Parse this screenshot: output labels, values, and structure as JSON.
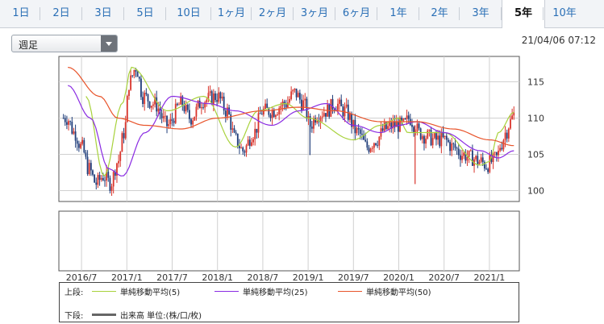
{
  "tabs": [
    {
      "label": "1日"
    },
    {
      "label": "2日"
    },
    {
      "label": "3日"
    },
    {
      "label": "5日"
    },
    {
      "label": "10日"
    },
    {
      "label": "1ヶ月"
    },
    {
      "label": "2ヶ月"
    },
    {
      "label": "3ヶ月"
    },
    {
      "label": "6ヶ月"
    },
    {
      "label": "1年"
    },
    {
      "label": "2年"
    },
    {
      "label": "3年"
    },
    {
      "label": "5年"
    },
    {
      "label": "10年"
    }
  ],
  "active_tab": "5年",
  "period_select": {
    "value": "週足"
  },
  "timestamp": "21/04/06 07:12",
  "legend": {
    "upper_label": "上段:",
    "lower_label": "下段:",
    "ma5": "単純移動平均(5)",
    "ma25": "単純移動平均(25)",
    "ma50": "単純移動平均(50)",
    "volume": "出来高 単位:(株/口/枚)"
  },
  "colors": {
    "up": "#d9342b",
    "down": "#1f3d7a",
    "ma5": "#a8d23c",
    "ma25": "#8a2be2",
    "ma50": "#e8542b",
    "volume": "#666666"
  },
  "chart_data": {
    "type": "candlestick",
    "x_ticks": [
      "2016/7",
      "2017/1",
      "2017/7",
      "2018/1",
      "2018/7",
      "2019/1",
      "2019/7",
      "2020/1",
      "2020/7",
      "2021/1"
    ],
    "y_ticks": [
      100,
      105,
      110,
      115
    ],
    "ylim": [
      98.5,
      118.5
    ],
    "series": [
      {
        "name": "単純移動平均(5)",
        "anchors": [
          [
            2016.55,
            113
          ],
          [
            2016.75,
            102
          ],
          [
            2016.95,
            112
          ],
          [
            2017.05,
            117
          ],
          [
            2017.45,
            111
          ],
          [
            2017.85,
            113
          ],
          [
            2018.2,
            106
          ],
          [
            2018.45,
            111
          ],
          [
            2018.75,
            112
          ],
          [
            2019.0,
            110
          ],
          [
            2019.5,
            107
          ],
          [
            2019.8,
            109
          ],
          [
            2020.0,
            110
          ],
          [
            2020.1,
            108
          ],
          [
            2020.5,
            108
          ],
          [
            2020.9,
            103.5
          ],
          [
            2021.0,
            104
          ],
          [
            2021.1,
            108
          ],
          [
            2021.27,
            110.8
          ]
        ]
      },
      {
        "name": "単純移動平均(25)",
        "anchors": [
          [
            2016.35,
            114.5
          ],
          [
            2016.6,
            110
          ],
          [
            2016.8,
            103
          ],
          [
            2016.95,
            102
          ],
          [
            2017.2,
            108
          ],
          [
            2017.5,
            113
          ],
          [
            2017.9,
            112
          ],
          [
            2018.2,
            111
          ],
          [
            2018.6,
            109
          ],
          [
            2018.9,
            111
          ],
          [
            2019.2,
            112
          ],
          [
            2019.5,
            109
          ],
          [
            2019.8,
            108
          ],
          [
            2020.0,
            109
          ],
          [
            2020.2,
            109.5
          ],
          [
            2020.5,
            108
          ],
          [
            2020.9,
            105.5
          ],
          [
            2021.1,
            104.5
          ],
          [
            2021.27,
            105.5
          ]
        ]
      },
      {
        "name": "単純移動平均(50)",
        "anchors": [
          [
            2016.35,
            117
          ],
          [
            2016.7,
            113
          ],
          [
            2016.9,
            110
          ],
          [
            2017.2,
            109
          ],
          [
            2017.6,
            108.5
          ],
          [
            2018.0,
            110
          ],
          [
            2018.5,
            111
          ],
          [
            2018.9,
            111.5
          ],
          [
            2019.3,
            111
          ],
          [
            2019.8,
            109.5
          ],
          [
            2020.2,
            109.5
          ],
          [
            2020.6,
            108.5
          ],
          [
            2021.0,
            107
          ],
          [
            2021.27,
            106.2
          ]
        ]
      },
      {
        "name": "candles",
        "anchors": [
          [
            2016.34,
            110
          ],
          [
            2016.42,
            108
          ],
          [
            2016.5,
            106
          ],
          [
            2016.58,
            103
          ],
          [
            2016.66,
            101
          ],
          [
            2016.74,
            102
          ],
          [
            2016.82,
            101
          ],
          [
            2016.9,
            104
          ],
          [
            2016.97,
            108
          ],
          [
            2017.03,
            115
          ],
          [
            2017.1,
            117
          ],
          [
            2017.18,
            113
          ],
          [
            2017.3,
            112
          ],
          [
            2017.45,
            109
          ],
          [
            2017.6,
            112
          ],
          [
            2017.7,
            110
          ],
          [
            2017.85,
            112.5
          ],
          [
            2018.0,
            113
          ],
          [
            2018.1,
            111
          ],
          [
            2018.2,
            107
          ],
          [
            2018.28,
            105.5
          ],
          [
            2018.4,
            108
          ],
          [
            2018.5,
            111
          ],
          [
            2018.6,
            111
          ],
          [
            2018.75,
            112
          ],
          [
            2018.85,
            113.5
          ],
          [
            2018.95,
            112
          ],
          [
            2019.02,
            109
          ],
          [
            2019.1,
            110.5
          ],
          [
            2019.2,
            111
          ],
          [
            2019.3,
            112
          ],
          [
            2019.4,
            111
          ],
          [
            2019.55,
            108
          ],
          [
            2019.65,
            106
          ],
          [
            2019.75,
            107
          ],
          [
            2019.85,
            108.5
          ],
          [
            2019.95,
            109
          ],
          [
            2020.05,
            109
          ],
          [
            2020.12,
            110
          ],
          [
            2020.18,
            109
          ],
          [
            2020.22,
            108
          ],
          [
            2020.3,
            107.5
          ],
          [
            2020.4,
            107
          ],
          [
            2020.5,
            107
          ],
          [
            2020.6,
            106
          ],
          [
            2020.7,
            105
          ],
          [
            2020.8,
            104.5
          ],
          [
            2020.9,
            104
          ],
          [
            2020.97,
            103.5
          ],
          [
            2021.02,
            104
          ],
          [
            2021.08,
            104.5
          ],
          [
            2021.13,
            106.5
          ],
          [
            2021.18,
            108
          ],
          [
            2021.23,
            109.5
          ],
          [
            2021.27,
            110.5
          ]
        ]
      }
    ]
  }
}
